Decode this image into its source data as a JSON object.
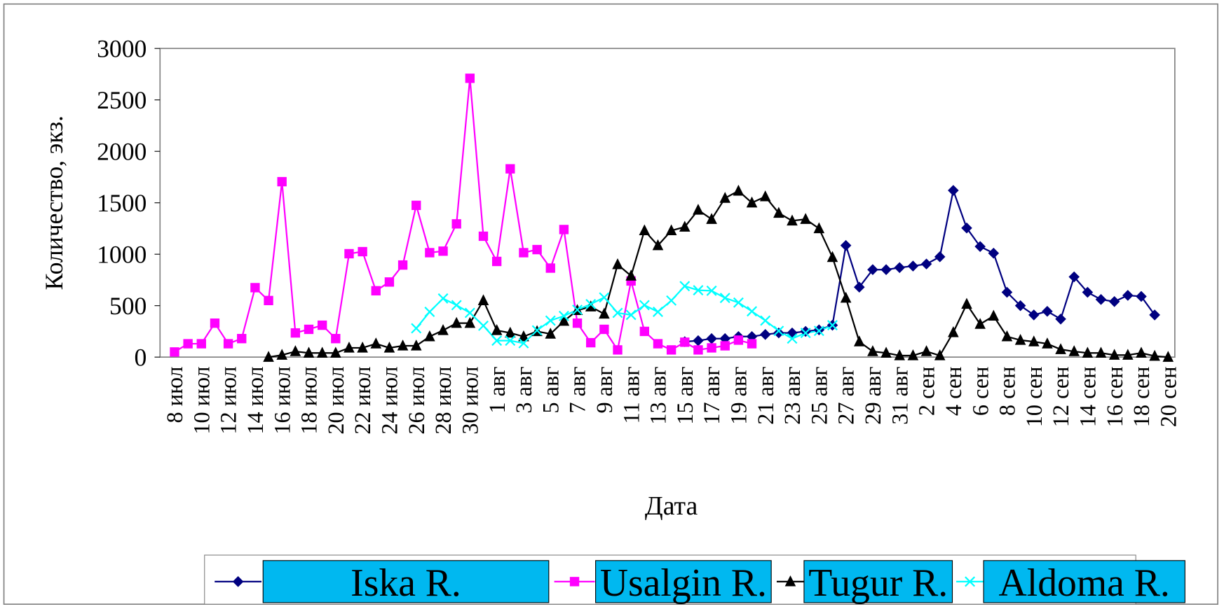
{
  "chart_data": {
    "type": "line",
    "x_label": "Дата",
    "y_label": "Количество, экз.",
    "categories": [
      "8 июл",
      null,
      "10 июл",
      null,
      "12 июл",
      null,
      "14 июл",
      null,
      "16 июл",
      null,
      "18 июл",
      null,
      "20 июл",
      null,
      "22 июл",
      null,
      "24 июл",
      null,
      "26 июл",
      null,
      "28 июл",
      null,
      "30 июл",
      null,
      "1 авг",
      null,
      "3 авг",
      null,
      "5 авг",
      null,
      "7 авг",
      null,
      "9 авг",
      null,
      "11 авг",
      null,
      "13 авг",
      null,
      "15 авг",
      null,
      "17 авг",
      null,
      "19 авг",
      null,
      "21 авг",
      null,
      "23 авг",
      null,
      "25 авг",
      null,
      "27 авг",
      null,
      "29 авг",
      null,
      "31 авг",
      null,
      "2 сен",
      null,
      "4 сен",
      null,
      "6 сен",
      null,
      "8 сен",
      null,
      "10 сен",
      null,
      "12 сен",
      null,
      "14 сен",
      null,
      "16 сен",
      null,
      "18 сен",
      null,
      "20 сен"
    ],
    "ylim": [
      0,
      3000
    ],
    "yticks": [
      0,
      500,
      1000,
      1500,
      2000,
      2500,
      3000
    ],
    "series": [
      {
        "name": "Iska R.",
        "color": "#000080",
        "marker": "diamond",
        "values": [
          null,
          null,
          null,
          null,
          null,
          null,
          null,
          null,
          null,
          null,
          null,
          null,
          null,
          null,
          null,
          null,
          null,
          null,
          null,
          null,
          null,
          null,
          null,
          null,
          null,
          null,
          null,
          null,
          null,
          null,
          null,
          null,
          null,
          null,
          null,
          null,
          null,
          null,
          150,
          160,
          180,
          180,
          200,
          200,
          220,
          235,
          235,
          250,
          265,
          310,
          1085,
          680,
          850,
          850,
          870,
          885,
          905,
          975,
          1620,
          1255,
          1075,
          1010,
          630,
          500,
          410,
          445,
          370,
          780,
          630,
          560,
          540,
          600,
          590,
          410,
          null
        ]
      },
      {
        "name": "Usalgin R.",
        "color": "#ff00ff",
        "marker": "square",
        "values": [
          50,
          130,
          130,
          330,
          130,
          180,
          675,
          550,
          1705,
          235,
          270,
          310,
          180,
          1005,
          1025,
          645,
          730,
          895,
          1475,
          1015,
          1030,
          1295,
          2710,
          1175,
          930,
          1830,
          1015,
          1045,
          865,
          1240,
          330,
          140,
          270,
          70,
          740,
          250,
          130,
          70,
          145,
          70,
          90,
          110,
          165,
          130,
          null,
          null,
          null,
          null,
          null,
          null,
          null,
          null,
          null,
          null,
          null,
          null,
          null,
          null,
          null,
          null,
          null,
          null,
          null,
          null,
          null,
          null,
          null,
          null,
          null,
          null,
          null,
          null,
          null,
          null,
          null
        ]
      },
      {
        "name": "Tugur R.",
        "color": "#000000",
        "marker": "triangle",
        "values": [
          null,
          null,
          null,
          null,
          null,
          null,
          null,
          0,
          20,
          55,
          40,
          40,
          40,
          90,
          90,
          130,
          90,
          110,
          110,
          200,
          260,
          330,
          330,
          550,
          260,
          235,
          200,
          250,
          225,
          350,
          455,
          490,
          420,
          900,
          790,
          1230,
          1085,
          1230,
          1265,
          1430,
          1340,
          1545,
          1615,
          1500,
          1560,
          1400,
          1325,
          1340,
          1250,
          970,
          575,
          150,
          55,
          40,
          15,
          15,
          55,
          15,
          240,
          515,
          320,
          400,
          200,
          165,
          150,
          130,
          75,
          55,
          40,
          40,
          20,
          20,
          40,
          10,
          0
        ]
      },
      {
        "name": "Aldoma R.",
        "color": "#00ffff",
        "marker": "x",
        "values": [
          null,
          null,
          null,
          null,
          null,
          null,
          null,
          null,
          null,
          null,
          null,
          null,
          null,
          null,
          null,
          null,
          null,
          null,
          280,
          440,
          570,
          505,
          430,
          305,
          160,
          160,
          135,
          260,
          355,
          400,
          460,
          515,
          580,
          430,
          410,
          505,
          440,
          550,
          690,
          650,
          645,
          575,
          530,
          445,
          355,
          255,
          180,
          235,
          255,
          310,
          null,
          null,
          null,
          null,
          null,
          null,
          null,
          null,
          null,
          null,
          null,
          null,
          null,
          null,
          null,
          null,
          null,
          null,
          null,
          null,
          null,
          null,
          null,
          null,
          null
        ]
      }
    ]
  }
}
